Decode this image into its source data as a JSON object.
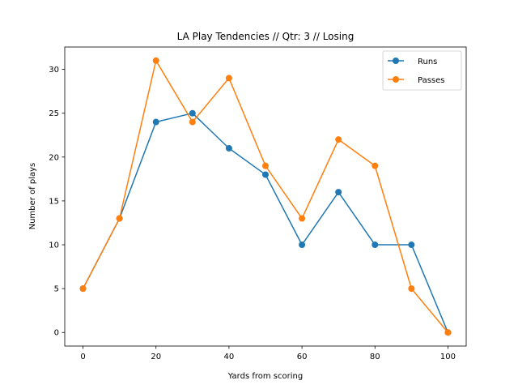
{
  "chart_data": {
    "type": "line",
    "title": "LA Play Tendencies // Qtr: 3 // Losing",
    "xlabel": "Yards from scoring",
    "ylabel": "Number of plays",
    "x": [
      0,
      10,
      20,
      30,
      40,
      50,
      60,
      70,
      80,
      90,
      100
    ],
    "xlim": [
      -5,
      105
    ],
    "ylim": [
      -1.55,
      32.55
    ],
    "xticks": [
      0,
      20,
      40,
      60,
      80,
      100
    ],
    "yticks": [
      0,
      5,
      10,
      15,
      20,
      25,
      30
    ],
    "grid": false,
    "legend_position": "top-right",
    "series": [
      {
        "name": "Runs",
        "color": "#1f77b4",
        "values": [
          5,
          13,
          24,
          25,
          21,
          18,
          10,
          16,
          10,
          10,
          0
        ]
      },
      {
        "name": "Passes",
        "color": "#ff7f0e",
        "values": [
          5,
          13,
          31,
          24,
          29,
          19,
          13,
          22,
          19,
          5,
          0
        ]
      }
    ]
  }
}
